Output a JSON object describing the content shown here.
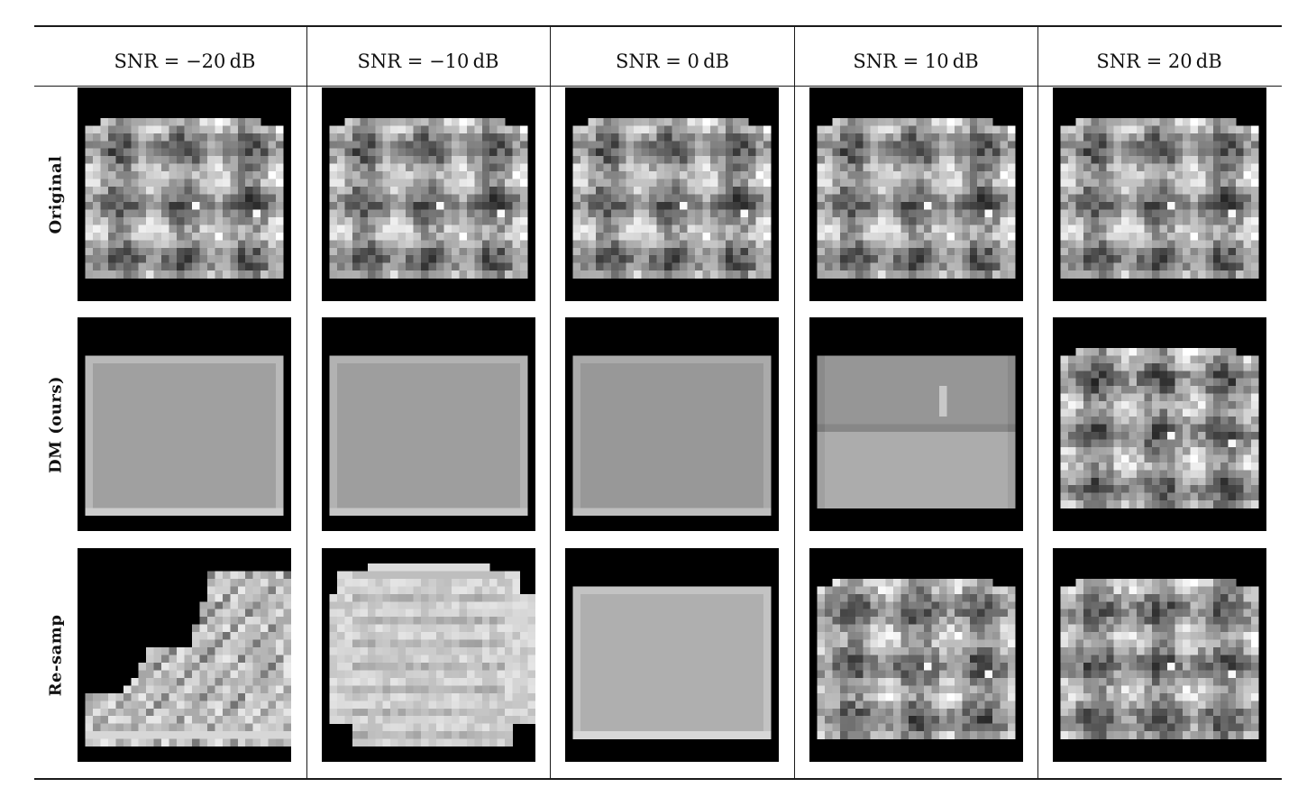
{
  "table": {
    "columns": [
      "SNR = −20 dB",
      "SNR = −10 dB",
      "SNR = 0 dB",
      "SNR = 10 dB",
      "SNR = 20 dB"
    ],
    "rows": [
      "Original",
      "DM (ours)",
      "Re-samp"
    ]
  }
}
